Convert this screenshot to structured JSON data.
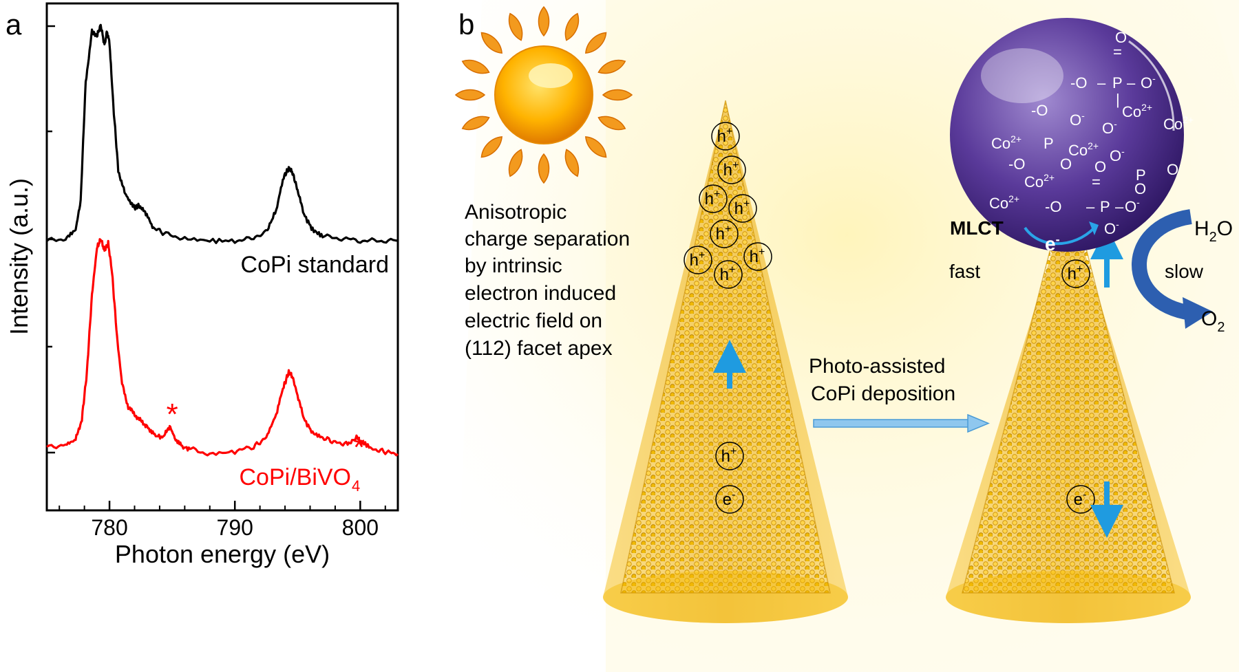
{
  "panel_a": {
    "letter": "a",
    "chart_data": {
      "type": "line",
      "title": "",
      "xlabel": "Photon energy (eV)",
      "ylabel": "Intensity (a.u.)",
      "xlim": [
        775,
        803
      ],
      "x_ticks": [
        780,
        790,
        800
      ],
      "x_tick_labels": [
        "780",
        "790",
        "800"
      ],
      "series": [
        {
          "name": "CoPi standard",
          "color": "#000000",
          "offset": 1.0,
          "x": [
            775.0,
            776.5,
            777.3,
            777.7,
            778.1,
            778.6,
            779.0,
            779.3,
            779.6,
            779.8,
            780.0,
            780.3,
            780.7,
            781.2,
            781.6,
            782.0,
            782.4,
            782.9,
            783.5,
            784.5,
            786.0,
            788.0,
            790.0,
            791.5,
            792.6,
            793.3,
            793.9,
            794.3,
            794.6,
            795.0,
            795.5,
            796.2,
            797.0,
            798.5,
            800.0,
            801.5,
            803.0
          ],
          "y": [
            0.0,
            0.01,
            0.05,
            0.18,
            0.72,
            0.95,
            0.93,
            0.98,
            0.89,
            0.95,
            0.9,
            0.62,
            0.32,
            0.22,
            0.18,
            0.15,
            0.16,
            0.12,
            0.06,
            0.03,
            0.01,
            0.0,
            0.0,
            0.01,
            0.05,
            0.14,
            0.29,
            0.33,
            0.31,
            0.23,
            0.12,
            0.05,
            0.02,
            0.01,
            0.0,
            0.0,
            0.0
          ]
        },
        {
          "name": "CoPi/BiVO4",
          "color": "#ff0000",
          "offset": 0.0,
          "x": [
            775.0,
            776.5,
            777.3,
            777.8,
            778.2,
            778.6,
            779.0,
            779.3,
            779.6,
            779.9,
            780.2,
            780.6,
            781.0,
            781.5,
            782.0,
            782.5,
            783.0,
            783.6,
            784.3,
            784.8,
            785.2,
            785.8,
            786.5,
            788.0,
            790.0,
            791.5,
            792.5,
            793.3,
            793.9,
            794.3,
            794.6,
            795.0,
            795.5,
            796.2,
            797.0,
            798.0,
            799.0,
            799.7,
            800.2,
            801.0,
            802.0,
            803.0
          ],
          "y": [
            0.03,
            0.04,
            0.06,
            0.15,
            0.35,
            0.68,
            0.88,
            0.92,
            0.87,
            0.9,
            0.78,
            0.5,
            0.3,
            0.2,
            0.17,
            0.14,
            0.12,
            0.08,
            0.07,
            0.12,
            0.07,
            0.03,
            0.02,
            0.0,
            0.01,
            0.03,
            0.07,
            0.17,
            0.29,
            0.35,
            0.33,
            0.25,
            0.15,
            0.09,
            0.07,
            0.05,
            0.04,
            0.07,
            0.05,
            0.02,
            0.01,
            0.0
          ]
        }
      ],
      "labels": [
        "CoPi standard",
        "CoPi/BiVO",
        "4"
      ],
      "annotations": [
        "*",
        "*"
      ],
      "annotation_x": [
        785.0,
        799.9
      ]
    }
  },
  "panel_b": {
    "letter": "b",
    "left_text": [
      "Anisotropic",
      "charge separation",
      "by intrinsic",
      "electron induced",
      "electric field on",
      "(112) facet apex"
    ],
    "holes_label": "h",
    "plus": "+",
    "electron_label": "e",
    "minus": "-",
    "arrow_text": [
      "Photo-assisted",
      "CoPi deposition"
    ],
    "mlct": "MLCT",
    "fast": "fast",
    "slow": "slow",
    "h2o": "H",
    "h2o_sub": "2",
    "h2o_end": "O",
    "o2": "O",
    "o2_sub": "2",
    "cluster": {
      "co": "Co",
      "co_charge": "2+",
      "o": "O",
      "o_minus": "-",
      "p": "P",
      "eq": "=",
      "dash": "–"
    },
    "colors": {
      "cone": "#f2b400",
      "cone_edge": "#e09a00",
      "sphere": "#4b2a86",
      "arrow_blue": "#1f9be0",
      "reaction_arrow": "#2d5fb0"
    }
  }
}
